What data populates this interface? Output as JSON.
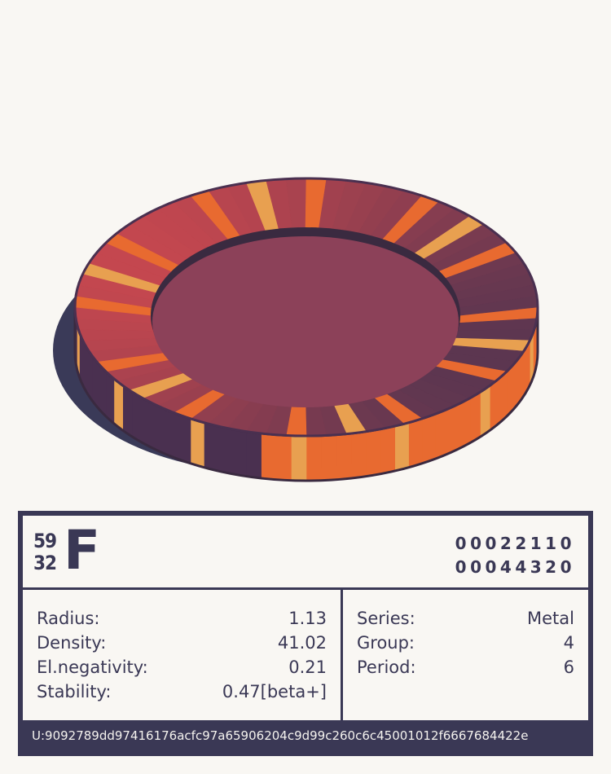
{
  "element": {
    "mass_number": "59",
    "atomic_number": "32",
    "symbol": "F",
    "code_top": "00022110",
    "code_bottom": "00044320"
  },
  "properties": [
    {
      "label": "Radius:",
      "value": "1.13"
    },
    {
      "label": "Density:",
      "value": "41.02"
    },
    {
      "label": "El.negativity:",
      "value": "0.21"
    },
    {
      "label": "Stability:",
      "value": "0.47[beta+]"
    }
  ],
  "classification": [
    {
      "label": "Series:",
      "value": "Metal"
    },
    {
      "label": "Group:",
      "value": "4"
    },
    {
      "label": "Period:",
      "value": "6"
    }
  ],
  "uid": "U:9092789dd97416176acfc97a65906204c9d99c260c6c45001012f6667684422e",
  "colors": {
    "ink": "#3a3855",
    "background": "#f9f7f3",
    "orange": "#e86a30",
    "stripe_light": "#e8a050",
    "red": "#c4474f",
    "purple": "#5c3650",
    "floor": "#8c4159",
    "shadow": "#3a3a58"
  }
}
